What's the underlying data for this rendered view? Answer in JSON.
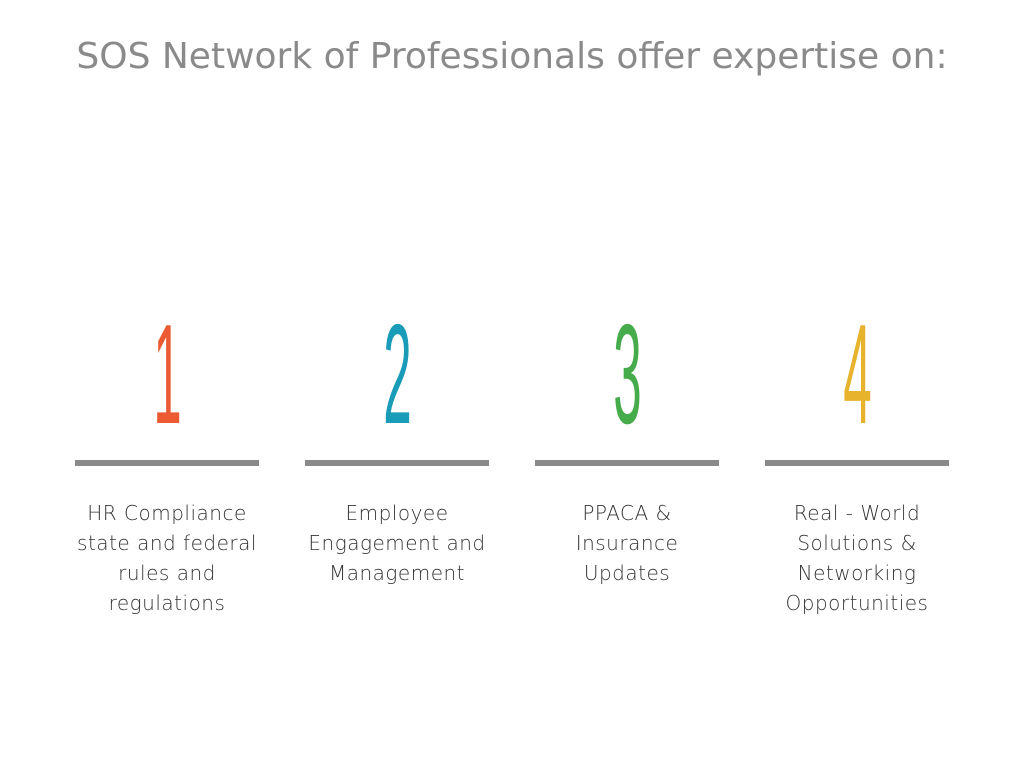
{
  "title": "SOS Network of Professionals offer expertise on:",
  "items": [
    {
      "number": "1",
      "color": "#ec5a33",
      "lines": [
        "HR Compliance",
        "state and federal",
        "rules and",
        "regulations"
      ]
    },
    {
      "number": "2",
      "color": "#1a9bb8",
      "lines": [
        "Employee",
        "Engagement and",
        "Management"
      ]
    },
    {
      "number": "3",
      "color": "#46ab4a",
      "lines": [
        "PPACA &",
        "Insurance",
        "Updates"
      ]
    },
    {
      "number": "4",
      "color": "#e8b32c",
      "lines": [
        "Real - World",
        "Solutions &",
        "Networking",
        "Opportunities"
      ]
    }
  ]
}
